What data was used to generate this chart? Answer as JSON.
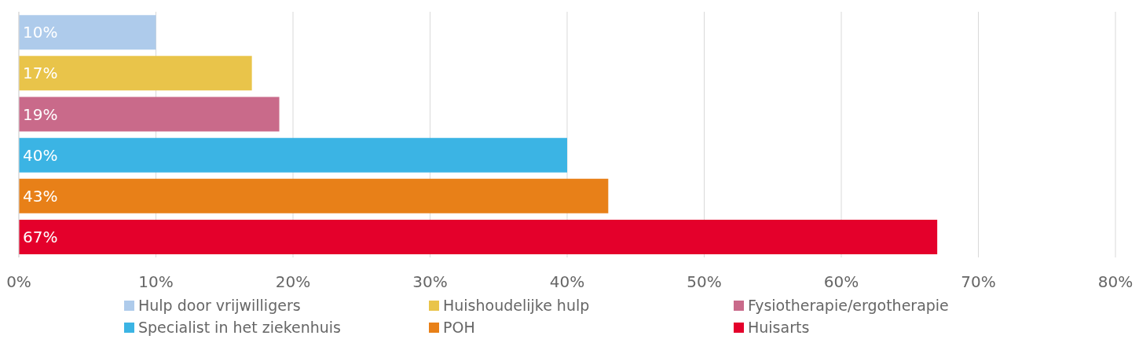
{
  "chart_data": {
    "type": "bar",
    "orientation": "horizontal",
    "categories": [
      null,
      null,
      null,
      null,
      null,
      null
    ],
    "series": [
      {
        "name": "Hulp door vrijwilligers",
        "color": "#aecbeb",
        "values": [
          10,
          null,
          null,
          null,
          null,
          null
        ],
        "value_labels": [
          "10%",
          null,
          null,
          null,
          null,
          null
        ]
      },
      {
        "name": "Huishoudelijke hulp",
        "color": "#e9c44a",
        "values": [
          null,
          17,
          null,
          null,
          null,
          null
        ],
        "value_labels": [
          null,
          "17%",
          null,
          null,
          null,
          null
        ]
      },
      {
        "name": "Fysiotherapie/ergotherapie",
        "color": "#c96a8a",
        "values": [
          null,
          null,
          19,
          null,
          null,
          null
        ],
        "value_labels": [
          null,
          null,
          "19%",
          null,
          null,
          null
        ]
      },
      {
        "name": "Specialist in het ziekenhuis",
        "color": "#3bb4e4",
        "values": [
          null,
          null,
          null,
          40,
          null,
          null
        ],
        "value_labels": [
          null,
          null,
          null,
          "40%",
          null,
          null
        ]
      },
      {
        "name": "POH",
        "color": "#e88018",
        "values": [
          null,
          null,
          null,
          null,
          43,
          null
        ],
        "value_labels": [
          null,
          null,
          null,
          null,
          "43%",
          null
        ]
      },
      {
        "name": "Huisarts",
        "color": "#e4002b",
        "values": [
          null,
          null,
          null,
          null,
          null,
          67
        ],
        "value_labels": [
          null,
          null,
          null,
          null,
          null,
          "67%"
        ]
      }
    ],
    "xlim": [
      0,
      80
    ],
    "xticks": [
      {
        "value": 0,
        "label": "0%"
      },
      {
        "value": 10,
        "label": "10%"
      },
      {
        "value": 20,
        "label": "20%"
      },
      {
        "value": 30,
        "label": "30%"
      },
      {
        "value": 40,
        "label": "40%"
      },
      {
        "value": 50,
        "label": "50%"
      },
      {
        "value": 60,
        "label": "60%"
      },
      {
        "value": 70,
        "label": "70%"
      },
      {
        "value": 80,
        "label": "80%"
      }
    ],
    "grid": "x",
    "legend": "bottom"
  }
}
